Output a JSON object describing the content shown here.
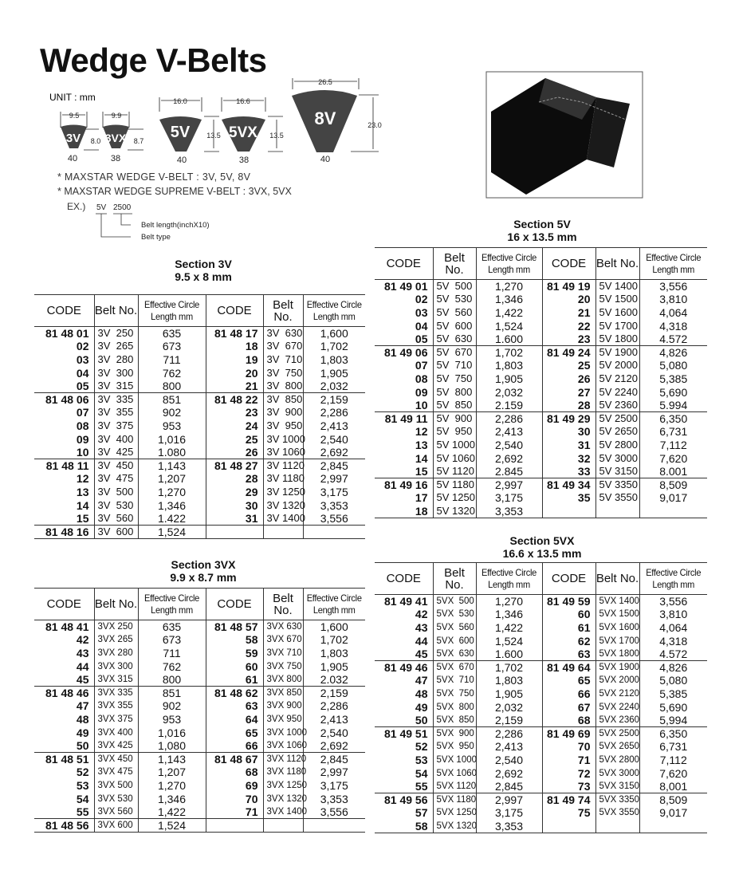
{
  "title": "Wedge V-Belts",
  "unit_label": "UNIT : mm",
  "profiles": [
    {
      "name": "3V",
      "top_width": "9.5",
      "height": "8.0",
      "angle": "40"
    },
    {
      "name": "3VX",
      "top_width": "9.9",
      "height": "8.7",
      "angle": "38"
    },
    {
      "name": "5V",
      "top_width": "16.0",
      "height": "13.5",
      "angle": "40"
    },
    {
      "name": "5VX",
      "top_width": "16.6",
      "height": "13.5",
      "angle": "38"
    },
    {
      "name": "8V",
      "top_width": "26.5",
      "height": "23.0",
      "angle": "40"
    }
  ],
  "notes": [
    "* MAXSTAR WEDGE V-BELT : 3V, 5V, 8V",
    "* MAXSTAR WEDGE SUPREME V-BELT : 3VX, 5VX"
  ],
  "example": {
    "label": "EX.)",
    "type": "5V",
    "length": "2500",
    "length_desc": "Belt length(inchX10)",
    "type_desc": "Belt type"
  },
  "headers": {
    "code": "CODE",
    "belt": "Belt No.",
    "len1": "Effective Circle",
    "len2": "Length mm"
  },
  "sections": [
    {
      "id": "3v",
      "title": "Section 3V",
      "subtitle": "9.5 x 8 mm",
      "prefix": "81 48",
      "left": [
        [
          "01",
          "3V  250",
          "635"
        ],
        [
          "02",
          "3V  265",
          "673"
        ],
        [
          "03",
          "3V  280",
          "711"
        ],
        [
          "04",
          "3V  300",
          "762"
        ],
        [
          "05",
          "3V  315",
          "800"
        ],
        [
          "06",
          "3V  335",
          "851"
        ],
        [
          "07",
          "3V  355",
          "902"
        ],
        [
          "08",
          "3V  375",
          "953"
        ],
        [
          "09",
          "3V  400",
          "1,016"
        ],
        [
          "10",
          "3V  425",
          "1.080"
        ],
        [
          "11",
          "3V  450",
          "1,143"
        ],
        [
          "12",
          "3V  475",
          "1,207"
        ],
        [
          "13",
          "3V  500",
          "1,270"
        ],
        [
          "14",
          "3V  530",
          "1,346"
        ],
        [
          "15",
          "3V  560",
          "1.422"
        ],
        [
          "16",
          "3V  600",
          "1,524"
        ]
      ],
      "right": [
        [
          "17",
          "3V  630",
          "1,600"
        ],
        [
          "18",
          "3V  670",
          "1,702"
        ],
        [
          "19",
          "3V  710",
          "1,803"
        ],
        [
          "20",
          "3V  750",
          "1,905"
        ],
        [
          "21",
          "3V  800",
          "2,032"
        ],
        [
          "22",
          "3V  850",
          "2,159"
        ],
        [
          "23",
          "3V  900",
          "2,286"
        ],
        [
          "24",
          "3V  950",
          "2,413"
        ],
        [
          "25",
          "3V 1000",
          "2,540"
        ],
        [
          "26",
          "3V 1060",
          "2,692"
        ],
        [
          "27",
          "3V 1120",
          "2,845"
        ],
        [
          "28",
          "3V 1180",
          "2,997"
        ],
        [
          "29",
          "3V 1250",
          "3,175"
        ],
        [
          "30",
          "3V 1320",
          "3,353"
        ],
        [
          "31",
          "3V 1400",
          "3,556"
        ]
      ]
    },
    {
      "id": "5v",
      "title": "Section 5V",
      "subtitle": "16 x 13.5 mm",
      "prefix": "81 49",
      "left": [
        [
          "01",
          "5V  500",
          "1,270"
        ],
        [
          "02",
          "5V  530",
          "1,346"
        ],
        [
          "03",
          "5V  560",
          "1,422"
        ],
        [
          "04",
          "5V  600",
          "1,524"
        ],
        [
          "05",
          "5V  630",
          "1.600"
        ],
        [
          "06",
          "5V  670",
          "1,702"
        ],
        [
          "07",
          "5V  710",
          "1,803"
        ],
        [
          "08",
          "5V  750",
          "1,905"
        ],
        [
          "09",
          "5V  800",
          "2,032"
        ],
        [
          "10",
          "5V  850",
          "2.159"
        ],
        [
          "11",
          "5V  900",
          "2,286"
        ],
        [
          "12",
          "5V  950",
          "2,413"
        ],
        [
          "13",
          "5V 1000",
          "2,540"
        ],
        [
          "14",
          "5V 1060",
          "2,692"
        ],
        [
          "15",
          "5V 1120",
          "2.845"
        ],
        [
          "16",
          "5V 1180",
          "2,997"
        ],
        [
          "17",
          "5V 1250",
          "3,175"
        ],
        [
          "18",
          "5V 1320",
          "3,353"
        ]
      ],
      "right": [
        [
          "19",
          "5V 1400",
          "3,556"
        ],
        [
          "20",
          "5V 1500",
          "3,810"
        ],
        [
          "21",
          "5V 1600",
          "4,064"
        ],
        [
          "22",
          "5V 1700",
          "4,318"
        ],
        [
          "23",
          "5V 1800",
          "4.572"
        ],
        [
          "24",
          "5V 1900",
          "4,826"
        ],
        [
          "25",
          "5V 2000",
          "5,080"
        ],
        [
          "26",
          "5V 2120",
          "5,385"
        ],
        [
          "27",
          "5V 2240",
          "5,690"
        ],
        [
          "28",
          "5V 2360",
          "5.994"
        ],
        [
          "29",
          "5V 2500",
          "6,350"
        ],
        [
          "30",
          "5V 2650",
          "6,731"
        ],
        [
          "31",
          "5V 2800",
          "7,112"
        ],
        [
          "32",
          "5V 3000",
          "7,620"
        ],
        [
          "33",
          "5V 3150",
          "8.001"
        ],
        [
          "34",
          "5V 3350",
          "8,509"
        ],
        [
          "35",
          "5V 3550",
          "9,017"
        ]
      ]
    },
    {
      "id": "3vx",
      "title": "Section 3VX",
      "subtitle": "9.9 x 8.7 mm",
      "prefix": "81 48",
      "left": [
        [
          "41",
          "3VX 250",
          "635"
        ],
        [
          "42",
          "3VX 265",
          "673"
        ],
        [
          "43",
          "3VX 280",
          "711"
        ],
        [
          "44",
          "3VX 300",
          "762"
        ],
        [
          "45",
          "3VX 315",
          "800"
        ],
        [
          "46",
          "3VX 335",
          "851"
        ],
        [
          "47",
          "3VX 355",
          "902"
        ],
        [
          "48",
          "3VX 375",
          "953"
        ],
        [
          "49",
          "3VX 400",
          "1,016"
        ],
        [
          "50",
          "3VX 425",
          "1,080"
        ],
        [
          "51",
          "3VX 450",
          "1,143"
        ],
        [
          "52",
          "3VX 475",
          "1,207"
        ],
        [
          "53",
          "3VX 500",
          "1,270"
        ],
        [
          "54",
          "3VX 530",
          "1,346"
        ],
        [
          "55",
          "3VX 560",
          "1,422"
        ],
        [
          "56",
          "3VX 600",
          "1,524"
        ]
      ],
      "right": [
        [
          "57",
          "3VX 630",
          "1,600"
        ],
        [
          "58",
          "3VX 670",
          "1,702"
        ],
        [
          "59",
          "3VX 710",
          "1,803"
        ],
        [
          "60",
          "3VX 750",
          "1,905"
        ],
        [
          "61",
          "3VX 800",
          "2.032"
        ],
        [
          "62",
          "3VX 850",
          "2,159"
        ],
        [
          "63",
          "3VX 900",
          "2,286"
        ],
        [
          "64",
          "3VX 950",
          "2,413"
        ],
        [
          "65",
          "3VX 1000",
          "2,540"
        ],
        [
          "66",
          "3VX 1060",
          "2,692"
        ],
        [
          "67",
          "3VX 1120",
          "2,845"
        ],
        [
          "68",
          "3VX 1180",
          "2,997"
        ],
        [
          "69",
          "3VX 1250",
          "3,175"
        ],
        [
          "70",
          "3VX 1320",
          "3,353"
        ],
        [
          "71",
          "3VX 1400",
          "3,556"
        ]
      ]
    },
    {
      "id": "5vx",
      "title": "Section 5VX",
      "subtitle": "16.6 x 13.5 mm",
      "prefix": "81 49",
      "left": [
        [
          "41",
          "5VX  500",
          "1,270"
        ],
        [
          "42",
          "5VX  530",
          "1,346"
        ],
        [
          "43",
          "5VX  560",
          "1,422"
        ],
        [
          "44",
          "5VX  600",
          "1,524"
        ],
        [
          "45",
          "5VX  630",
          "1.600"
        ],
        [
          "46",
          "5VX  670",
          "1,702"
        ],
        [
          "47",
          "5VX  710",
          "1,803"
        ],
        [
          "48",
          "5VX  750",
          "1,905"
        ],
        [
          "49",
          "5VX  800",
          "2,032"
        ],
        [
          "50",
          "5VX  850",
          "2,159"
        ],
        [
          "51",
          "5VX  900",
          "2,286"
        ],
        [
          "52",
          "5VX  950",
          "2,413"
        ],
        [
          "53",
          "5VX 1000",
          "2,540"
        ],
        [
          "54",
          "5VX 1060",
          "2,692"
        ],
        [
          "55",
          "5VX 1120",
          "2,845"
        ],
        [
          "56",
          "5VX 1180",
          "2,997"
        ],
        [
          "57",
          "5VX 1250",
          "3,175"
        ],
        [
          "58",
          "5VX 1320",
          "3,353"
        ]
      ],
      "right": [
        [
          "59",
          "5VX 1400",
          "3,556"
        ],
        [
          "60",
          "5VX 1500",
          "3,810"
        ],
        [
          "61",
          "5VX 1600",
          "4,064"
        ],
        [
          "62",
          "5VX 1700",
          "4,318"
        ],
        [
          "63",
          "5VX 1800",
          "4.572"
        ],
        [
          "64",
          "5VX 1900",
          "4,826"
        ],
        [
          "65",
          "5VX 2000",
          "5,080"
        ],
        [
          "66",
          "5VX 2120",
          "5,385"
        ],
        [
          "67",
          "5VX 2240",
          "5,690"
        ],
        [
          "68",
          "5VX 2360",
          "5,994"
        ],
        [
          "69",
          "5VX 2500",
          "6,350"
        ],
        [
          "70",
          "5VX 2650",
          "6,731"
        ],
        [
          "71",
          "5VX 2800",
          "7,112"
        ],
        [
          "72",
          "5VX 3000",
          "7,620"
        ],
        [
          "73",
          "5VX 3150",
          "8,001"
        ],
        [
          "74",
          "5VX 3350",
          "8,509"
        ],
        [
          "75",
          "5VX 3550",
          "9,017"
        ]
      ]
    }
  ]
}
